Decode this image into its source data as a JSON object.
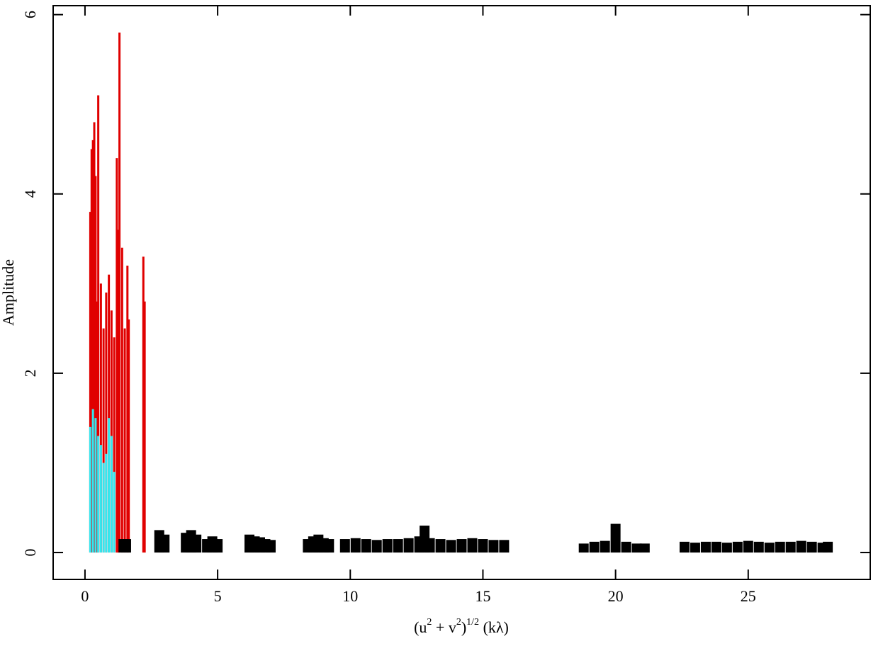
{
  "chart_data": {
    "type": "stem",
    "ylabel": "Amplitude",
    "xlabel": [
      {
        "text": "(u"
      },
      {
        "text": "2",
        "sup": true
      },
      {
        "text": " + v"
      },
      {
        "text": "2",
        "sup": true
      },
      {
        "text": ")"
      },
      {
        "text": "1/2",
        "sup": true
      },
      {
        "text": " (kλ)"
      }
    ],
    "xlim": [
      -1.2,
      29.6
    ],
    "ylim": [
      -0.3,
      6.1
    ],
    "xticks": [
      0,
      5,
      10,
      15,
      20,
      25
    ],
    "yticks": [
      0,
      2,
      4,
      6
    ],
    "series": [
      {
        "color": "#e00000",
        "x": [
          0.2,
          0.25,
          0.3,
          0.35,
          0.4,
          0.45,
          0.5,
          0.6,
          0.7,
          0.8,
          0.9,
          1.0,
          1.1,
          1.2,
          1.25,
          1.3,
          1.4,
          1.5,
          1.6,
          1.65,
          2.2,
          2.25
        ],
        "values": [
          3.8,
          4.5,
          4.6,
          4.8,
          4.2,
          2.8,
          5.1,
          3.0,
          2.5,
          2.9,
          3.1,
          2.7,
          2.4,
          4.4,
          3.6,
          5.8,
          3.4,
          2.5,
          3.2,
          2.6,
          3.3,
          2.8
        ]
      },
      {
        "color": "#000000",
        "x": [
          1.45,
          1.55,
          2.8,
          3.0,
          3.8,
          4.0,
          4.2,
          4.6,
          4.8,
          5.0,
          6.2,
          6.4,
          6.6,
          6.8,
          7.0,
          8.4,
          8.6,
          8.8,
          9.0,
          9.2,
          9.8,
          10.2,
          10.6,
          11.0,
          11.4,
          11.8,
          12.2,
          12.6,
          12.8,
          13.0,
          13.4,
          13.8,
          14.2,
          14.6,
          15.0,
          15.4,
          15.8,
          18.8,
          19.2,
          19.6,
          20.0,
          20.4,
          20.8,
          21.1,
          22.6,
          23.0,
          23.4,
          23.8,
          24.2,
          24.6,
          25.0,
          25.4,
          25.8,
          26.2,
          26.6,
          27.0,
          27.4,
          27.8,
          28.0
        ],
        "values": [
          0.15,
          0.15,
          0.25,
          0.2,
          0.22,
          0.25,
          0.2,
          0.15,
          0.18,
          0.15,
          0.2,
          0.18,
          0.17,
          0.15,
          0.14,
          0.15,
          0.18,
          0.2,
          0.16,
          0.15,
          0.15,
          0.16,
          0.15,
          0.14,
          0.15,
          0.15,
          0.16,
          0.18,
          0.3,
          0.16,
          0.15,
          0.14,
          0.15,
          0.16,
          0.15,
          0.14,
          0.14,
          0.1,
          0.12,
          0.13,
          0.32,
          0.12,
          0.1,
          0.1,
          0.12,
          0.11,
          0.12,
          0.12,
          0.11,
          0.12,
          0.13,
          0.12,
          0.11,
          0.12,
          0.12,
          0.13,
          0.12,
          0.11,
          0.12
        ]
      },
      {
        "color": "#33e8f0",
        "x": [
          0.2,
          0.3,
          0.4,
          0.5,
          0.6,
          0.7,
          0.8,
          0.9,
          1.0,
          1.1
        ],
        "values": [
          1.4,
          1.6,
          1.5,
          1.3,
          1.2,
          1.0,
          1.1,
          1.5,
          1.3,
          0.9
        ]
      }
    ]
  }
}
